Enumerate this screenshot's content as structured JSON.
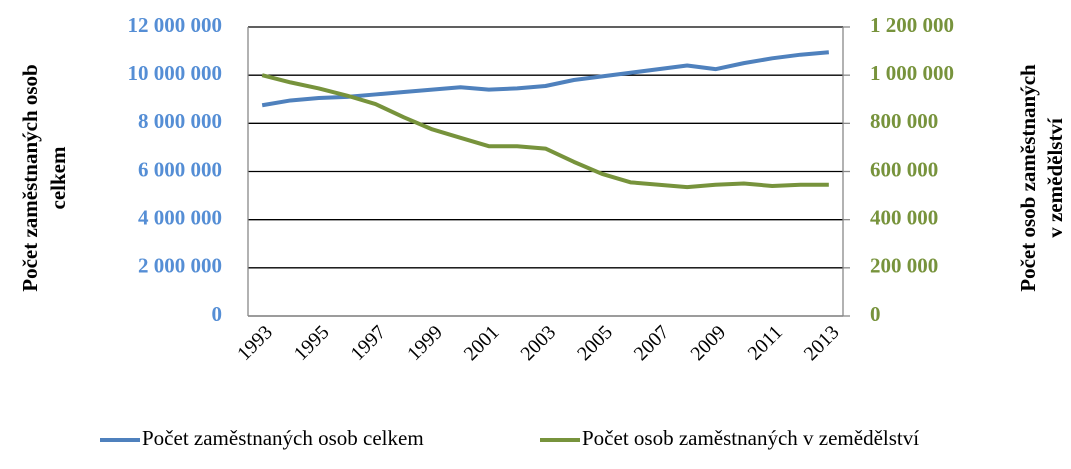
{
  "chart_data": {
    "type": "line",
    "ylabel": [
      "Počet zaměstnaných osob",
      "celkem"
    ],
    "y2label": [
      "Počet osob zaměstnaných",
      "v zemědělství"
    ],
    "categories": [
      "1993",
      null,
      "1995",
      null,
      "1997",
      null,
      "1999",
      null,
      "2001",
      null,
      "2003",
      null,
      "2005",
      null,
      "2007",
      null,
      "2009",
      null,
      "2011",
      null,
      "2013"
    ],
    "series": [
      {
        "name": "Počet zaměstnaných osob celkem",
        "color": "#4f81bd",
        "values": [
          8750000,
          8950000,
          9050000,
          9100000,
          9200000,
          9300000,
          9400000,
          9500000,
          9400000,
          9450000,
          9550000,
          9800000,
          9950000,
          10100000,
          10250000,
          10400000,
          10250000,
          10500000,
          10700000,
          10850000,
          10950000
        ]
      },
      {
        "name": "Počet osob zaměstnaných v zemědělství",
        "color": "#77933c",
        "axis": "y2",
        "values": [
          1000000,
          970000,
          945000,
          915000,
          880000,
          825000,
          775000,
          740000,
          705000,
          705000,
          695000,
          640000,
          590000,
          555000,
          545000,
          535000,
          545000,
          550000,
          540000,
          545000,
          545000
        ]
      }
    ],
    "ylim": [
      0,
      12000000
    ],
    "yticks": [
      0,
      {
        "value": 2000000,
        "label": "2 000 000"
      },
      {
        "value": 4000000,
        "label": "4 000 000"
      },
      {
        "value": 6000000,
        "label": "6 000 000"
      },
      {
        "value": 8000000,
        "label": "8 000 000"
      },
      {
        "value": 10000000,
        "label": "10 000 000"
      },
      {
        "value": 12000000,
        "label": "12 000 000"
      }
    ],
    "y2lim": [
      0,
      1200000
    ],
    "y2ticks": [
      0,
      {
        "value": 200000,
        "label": "200 000"
      },
      {
        "value": 400000,
        "label": "400 000"
      },
      {
        "value": 600000,
        "label": "600 000"
      },
      {
        "value": 800000,
        "label": "800 000"
      },
      {
        "value": 1000000,
        "label": "1 000 000"
      },
      {
        "value": 1200000,
        "label": "1 200 000"
      }
    ],
    "ytick_color": "#558ed5",
    "y2tick_color": "#77933c",
    "grid": true,
    "legend": "bottom"
  }
}
